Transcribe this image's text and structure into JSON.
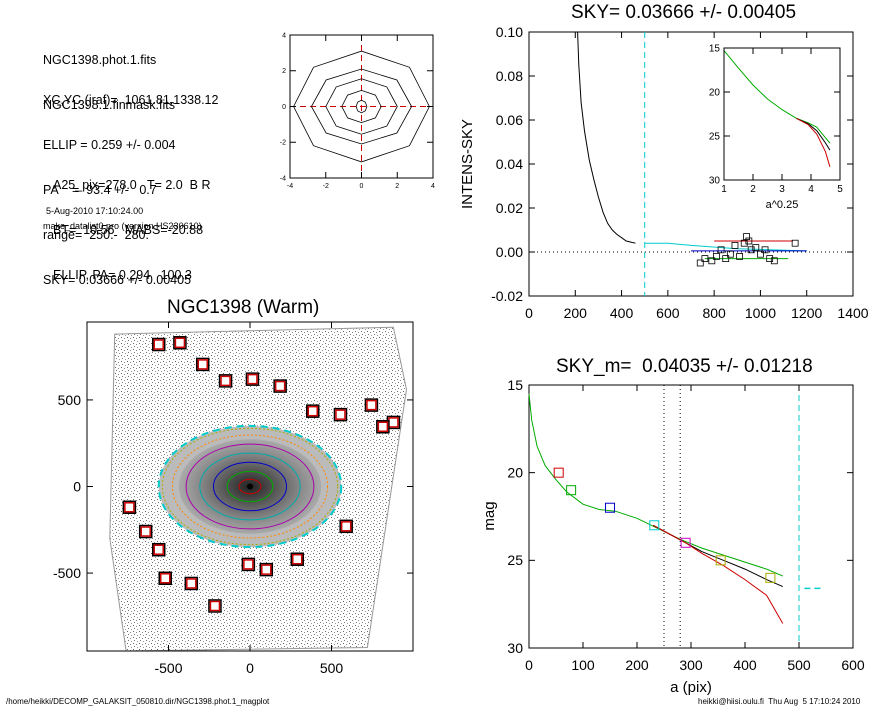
{
  "header": {
    "lines_top": [
      "NGC1398.phot.1.fits",
      "NGC1398.1.finmask.fits"
    ],
    "lines_mid": [
      "XC,YC (iraf)=  1061.81,1338.12",
      "ELLIP = 0.259 +/- 0.004",
      "PA    =  93.4 +/-   0.7",
      "range=  250.-  280.",
      "SKY= 0.03666 +/- 0.00405"
    ],
    "lines_bot": [
      "A25_pix=278.0   T= 2.0  B R",
      "BT=  10.56   MABS=-20.88",
      "ELLIP, PA= 0.294   100.3"
    ],
    "date": "5-Aug-2010 17:10:24.00",
    "program": "make_datalist0.pro (version HS230610)"
  },
  "footer": {
    "path": "/home/heikki/DECOMP_GALAKSIT_050810.dir/NGC1398.phot.1_magplot",
    "user": "heikki@hiisi.oulu.fi  Thu Aug  5 17:10:24 2010"
  },
  "chart_data": [
    {
      "id": "contour-panel",
      "type": "scatter",
      "title": "",
      "xlabel": "",
      "ylabel": "",
      "xlim": [
        -4,
        4
      ],
      "ylim": [
        -4,
        4
      ],
      "x_ticks": [
        "-4",
        "-2",
        "0",
        "2",
        "4"
      ],
      "y_ticks": [
        "-4",
        "-2",
        "0",
        "2",
        "4"
      ],
      "contours_semi_axes": [
        [
          0.3,
          0.35
        ],
        [
          1.1,
          0.9
        ],
        [
          2.0,
          1.55
        ],
        [
          2.8,
          2.1
        ],
        [
          3.8,
          3.1
        ]
      ]
    },
    {
      "id": "intens-sky",
      "type": "line",
      "title": "SKY= 0.03666 +/- 0.00405",
      "xlabel": "",
      "ylabel": "INTENS-SKY",
      "xlim": [
        0,
        1400
      ],
      "ylim": [
        -0.02,
        0.1
      ],
      "x_ticks": [
        "0",
        "200",
        "400",
        "600",
        "800",
        "1000",
        "1200",
        "1400"
      ],
      "y_ticks": [
        "-0.02",
        "0.00",
        "0.02",
        "0.04",
        "0.06",
        "0.08",
        "0.10"
      ],
      "sky_vline_x": 500,
      "profile": {
        "x": [
          210,
          215,
          225,
          240,
          260,
          280,
          300,
          320,
          340,
          360,
          380,
          400,
          420,
          440,
          460
        ],
        "y": [
          0.1,
          0.085,
          0.068,
          0.055,
          0.042,
          0.033,
          0.025,
          0.018,
          0.013,
          0.01,
          0.008,
          0.0065,
          0.005,
          0.0045,
          0.004
        ]
      },
      "sky_points": {
        "x": [
          740,
          760,
          790,
          810,
          830,
          850,
          870,
          890,
          910,
          930,
          940,
          950,
          960,
          980,
          1000,
          1020,
          1040,
          1060,
          1150
        ],
        "y": [
          -0.005,
          -0.003,
          -0.004,
          -0.002,
          0.001,
          -0.003,
          -0.001,
          0.003,
          -0.002,
          0.004,
          0.007,
          0.005,
          0.001,
          0.002,
          -0.001,
          0.001,
          -0.003,
          -0.004,
          0.004
        ]
      },
      "inset": {
        "xlabel": "a^0.25",
        "xlim": [
          1,
          5
        ],
        "ylim": [
          30,
          15
        ],
        "x_ticks": [
          "1",
          "2",
          "3",
          "4",
          "5"
        ],
        "y_ticks": [
          "15",
          "20",
          "25",
          "30"
        ],
        "series": [
          {
            "color": "#00aa00",
            "x": [
              1.0,
              1.5,
              2.0,
              2.5,
              3.0,
              3.5,
              3.9,
              4.2,
              4.5,
              4.65
            ],
            "y": [
              15.3,
              17.3,
              19.2,
              20.8,
              22.0,
              23.0,
              23.5,
              24.0,
              25.2,
              25.8
            ]
          },
          {
            "color": "#000000",
            "x": [
              3.5,
              3.9,
              4.2,
              4.5,
              4.65
            ],
            "y": [
              23.0,
              23.6,
              24.4,
              25.8,
              26.6
            ]
          },
          {
            "color": "#cc0000",
            "x": [
              3.5,
              3.9,
              4.2,
              4.5,
              4.65
            ],
            "y": [
              23.0,
              23.7,
              24.8,
              26.8,
              28.5
            ]
          }
        ]
      }
    },
    {
      "id": "galaxy-image",
      "type": "scatter",
      "title": "NGC1398 (Warm)",
      "xlabel": "",
      "ylabel": "",
      "xlim": [
        -1000,
        1000
      ],
      "ylim": [
        -950,
        950
      ],
      "x_ticks": [
        "-500",
        "0",
        "500"
      ],
      "y_ticks": [
        "-500",
        "0",
        "500"
      ],
      "sky_boxes": {
        "x": [
          -560,
          -430,
          -290,
          -150,
          15,
          185,
          385,
          555,
          745,
          880,
          815,
          590,
          290,
          100,
          -10,
          -215,
          -360,
          -520,
          -560,
          -640,
          -740
        ],
        "y": [
          820,
          830,
          705,
          610,
          620,
          580,
          435,
          415,
          470,
          370,
          345,
          -230,
          -420,
          -480,
          -450,
          -690,
          -560,
          -530,
          -365,
          -260,
          -120
        ]
      },
      "ellipse_a": 560,
      "ellipse_b": 350
    },
    {
      "id": "mag-profile",
      "type": "line",
      "title": "SKY_m=  0.04035 +/- 0.01218",
      "xlabel": "a (pix)",
      "ylabel": "mag",
      "xlim": [
        0,
        600
      ],
      "ylim": [
        30,
        15
      ],
      "x_ticks": [
        "0",
        "100",
        "200",
        "300",
        "400",
        "500",
        "600"
      ],
      "y_ticks": [
        "15",
        "20",
        "25",
        "30"
      ],
      "vlines_dotted": [
        250,
        280
      ],
      "vline_dashed": 500,
      "sky_level": {
        "x": [
          510,
          545
        ],
        "y": 26.6
      },
      "series": [
        {
          "color": "#00aa00",
          "x": [
            0,
            5,
            15,
            30,
            50,
            70,
            100,
            130,
            160,
            200,
            240,
            280,
            320,
            360,
            400,
            440,
            470
          ],
          "y": [
            15.5,
            17.0,
            18.5,
            19.6,
            20.4,
            21.1,
            21.8,
            22.1,
            22.2,
            22.6,
            23.2,
            23.8,
            24.3,
            24.7,
            25.1,
            25.5,
            25.9
          ]
        },
        {
          "color": "#000000",
          "x": [
            230,
            260,
            290,
            320,
            360,
            400,
            440,
            470
          ],
          "y": [
            23.0,
            23.5,
            24.0,
            24.5,
            25.0,
            25.5,
            26.1,
            26.5
          ]
        },
        {
          "color": "#cc0000",
          "x": [
            230,
            260,
            290,
            320,
            360,
            400,
            440,
            470
          ],
          "y": [
            23.0,
            23.5,
            24.0,
            24.6,
            25.3,
            26.1,
            27.0,
            28.6
          ]
        }
      ],
      "markers": [
        {
          "x": 55,
          "y": 20.0,
          "color": "#cc0000"
        },
        {
          "x": 78,
          "y": 21.0,
          "color": "#00aa00"
        },
        {
          "x": 150,
          "y": 22.0,
          "color": "#0000cc"
        },
        {
          "x": 232,
          "y": 23.0,
          "color": "#00cccc"
        },
        {
          "x": 290,
          "y": 24.0,
          "color": "#cc00cc"
        },
        {
          "x": 355,
          "y": 25.0,
          "color": "#aaaa00"
        },
        {
          "x": 447,
          "y": 26.0,
          "color": "#aaaa00"
        }
      ]
    }
  ]
}
